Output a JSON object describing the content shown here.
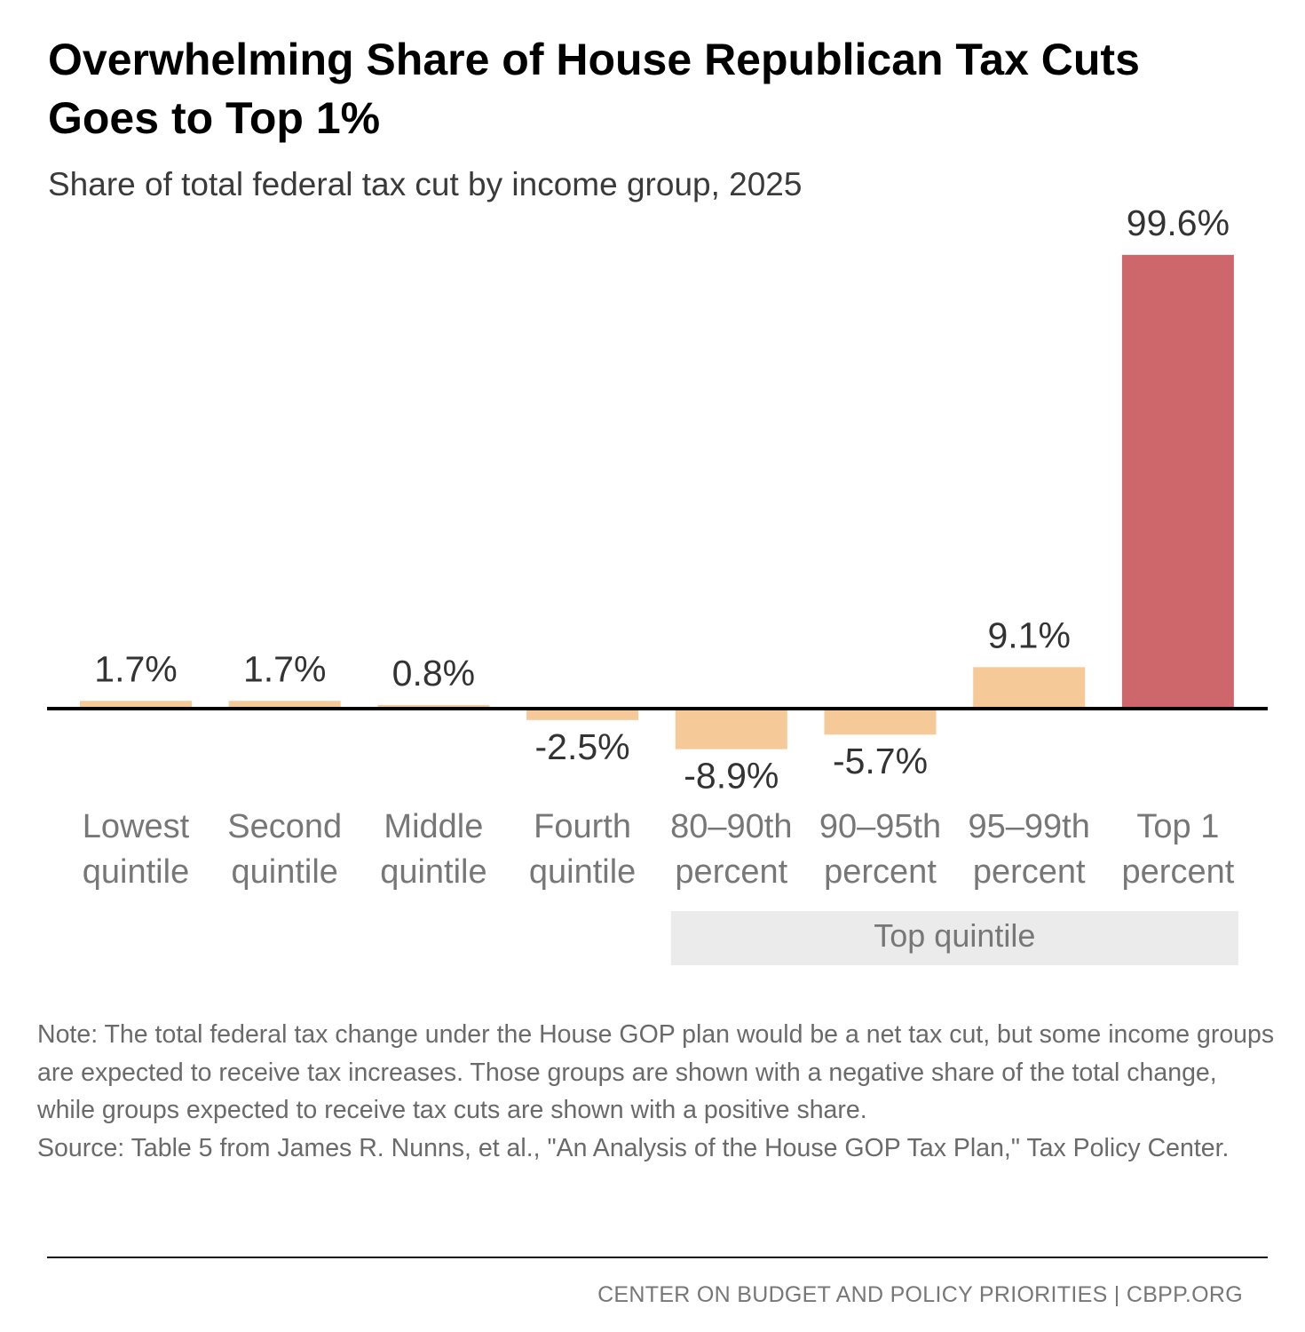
{
  "title": "Overwhelming Share of House Republican Tax Cuts Goes to Top 1%",
  "subtitle": "Share of total federal tax cut by income group, 2025",
  "note": "Note: The total federal tax change under the House GOP plan would be a net tax cut, but some income groups are expected to receive tax increases. Those groups are shown with a negative share of the total change, while groups expected to receive tax cuts are shown with a positive share.",
  "source": "Source: Table 5 from James R. Nunns, et al., \"An Analysis of the House GOP Tax Plan,\" Tax Policy Center.",
  "footer": "CENTER ON BUDGET AND POLICY PRIORITIES | CBPP.ORG",
  "colors": {
    "bar": "#f5ca98",
    "highlight": "#cd676c",
    "axis": "#000000",
    "group_bg": "#ebebeb",
    "label": "#777777",
    "value": "#333333"
  },
  "chart_data": {
    "type": "bar",
    "title": "Overwhelming Share of House Republican Tax Cuts Goes to Top 1%",
    "subtitle": "Share of total federal tax cut by income group, 2025",
    "xlabel": "",
    "ylabel": "",
    "ylim": [
      -10,
      100
    ],
    "grid": false,
    "categories": [
      [
        "Lowest",
        "quintile"
      ],
      [
        "Second",
        "quintile"
      ],
      [
        "Middle",
        "quintile"
      ],
      [
        "Fourth",
        "quintile"
      ],
      [
        "80–90th",
        "percent"
      ],
      [
        "90–95th",
        "percent"
      ],
      [
        "95–99th",
        "percent"
      ],
      [
        "Top 1",
        "percent"
      ]
    ],
    "values": [
      1.7,
      1.7,
      0.8,
      -2.5,
      -8.9,
      -5.7,
      9.1,
      99.6
    ],
    "value_labels": [
      "1.7%",
      "1.7%",
      "0.8%",
      "-2.5%",
      "-8.9%",
      "-5.7%",
      "9.1%",
      "99.6%"
    ],
    "highlight_index": 7,
    "group": {
      "label": "Top quintile",
      "first_index": 4,
      "last_index": 7
    }
  }
}
